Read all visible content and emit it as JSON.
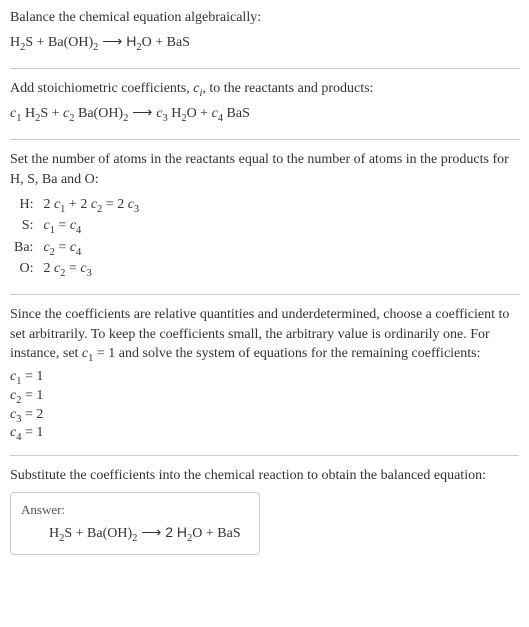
{
  "colors": {
    "text": "#333333",
    "divider": "#cccccc",
    "background": "#ffffff",
    "answer_label": "#555555"
  },
  "typography": {
    "font_family": "Georgia, 'Times New Roman', serif",
    "font_size_pt": 11,
    "line_height": 1.4
  },
  "section1": {
    "line1": "Balance the chemical equation algebraically:",
    "eq_h2s": "H",
    "eq_sub2a": "2",
    "eq_s": "S + Ba(OH)",
    "eq_sub2b": "2",
    "eq_arrow": "  ⟶  H",
    "eq_sub2c": "2",
    "eq_tail": "O + BaS"
  },
  "section2": {
    "line1a": "Add stoichiometric coefficients, ",
    "ci_c": "c",
    "ci_i": "i",
    "line1b": ", to the reactants and products:",
    "eq_c1": "c",
    "eq_s1": "1",
    "eq_sp1": " H",
    "eq_s2a": "2",
    "eq_sp2": "S + ",
    "eq_c2": "c",
    "eq_s2": "2",
    "eq_sp3": " Ba(OH)",
    "eq_s2b": "2",
    "eq_arrow": "  ⟶  ",
    "eq_c3": "c",
    "eq_s3": "3",
    "eq_sp4": " H",
    "eq_s2c": "2",
    "eq_sp5": "O + ",
    "eq_c4": "c",
    "eq_s4": "4",
    "eq_sp6": " BaS"
  },
  "section3": {
    "intro": "Set the number of atoms in the reactants equal to the number of atoms in the products for H, S, Ba and O:",
    "rows": [
      {
        "label": "H:",
        "p": [
          "2 ",
          "c",
          "1",
          " + 2 ",
          "c",
          "2",
          " = 2 ",
          "c",
          "3"
        ]
      },
      {
        "label": "S:",
        "p": [
          "",
          "c",
          "1",
          " = ",
          "c",
          "4"
        ]
      },
      {
        "label": "Ba:",
        "p": [
          "",
          "c",
          "2",
          " = ",
          "c",
          "4"
        ]
      },
      {
        "label": "O:",
        "p": [
          "2 ",
          "c",
          "2",
          " = ",
          "c",
          "3"
        ]
      }
    ]
  },
  "section4": {
    "intro_a": "Since the coefficients are relative quantities and underdetermined, choose a coefficient to set arbitrarily. To keep the coefficients small, the arbitrary value is ordinarily one. For instance, set ",
    "c": "c",
    "s1": "1",
    "intro_b": " = 1 and solve the system of equations for the remaining coefficients:",
    "lines": [
      {
        "c": "c",
        "s": "1",
        "v": " = 1"
      },
      {
        "c": "c",
        "s": "2",
        "v": " = 1"
      },
      {
        "c": "c",
        "s": "3",
        "v": " = 2"
      },
      {
        "c": "c",
        "s": "4",
        "v": " = 1"
      }
    ]
  },
  "section5": {
    "intro": "Substitute the coefficients into the chemical reaction to obtain the balanced equation:",
    "answer_label": "Answer:",
    "eq_h2s": "H",
    "eq_sub2a": "2",
    "eq_s": "S + Ba(OH)",
    "eq_sub2b": "2",
    "eq_arrow": "  ⟶  2 H",
    "eq_sub2c": "2",
    "eq_tail": "O + BaS"
  }
}
